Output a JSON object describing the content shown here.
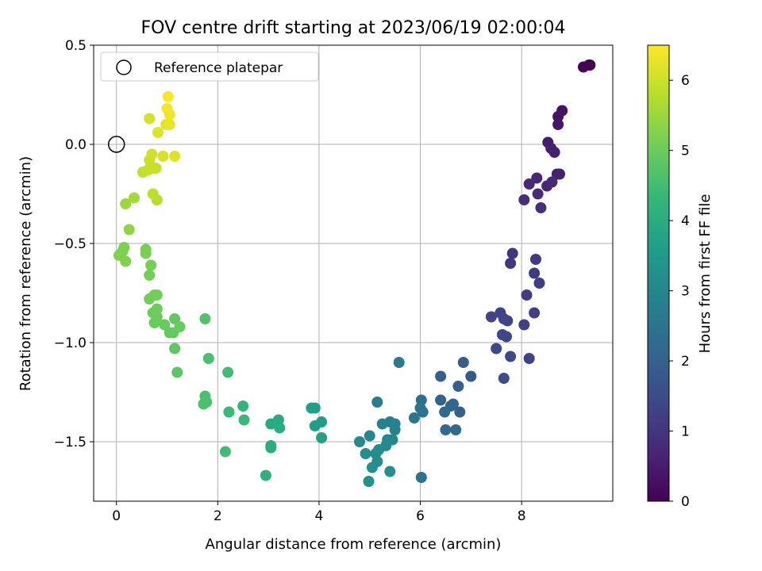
{
  "chart_data": {
    "type": "scatter",
    "title": "FOV centre drift starting at 2023/06/19 02:00:04",
    "xlabel": "Angular distance from reference (arcmin)",
    "ylabel": "Rotation from reference (arcmin)",
    "xlim": [
      -0.45,
      9.8
    ],
    "ylim": [
      -1.8,
      0.5
    ],
    "xticks": [
      0,
      2,
      4,
      6,
      8
    ],
    "xtick_labels": [
      "0",
      "2",
      "4",
      "6",
      "8"
    ],
    "yticks": [
      0.5,
      0.0,
      -0.5,
      -1.0,
      -1.5
    ],
    "ytick_labels": [
      "0.5",
      "0.0",
      "−0.5",
      "−1.0",
      "−1.5"
    ],
    "grid": true,
    "legend": {
      "position": "top-left",
      "entries": [
        "Reference platepar"
      ]
    },
    "reference_point": {
      "name": "Reference platepar",
      "x": 0,
      "y": 0
    },
    "colorbar": {
      "label": "Hours from first FF file",
      "colormap": "viridis",
      "range": [
        0,
        6.5
      ],
      "ticks": [
        0,
        1,
        2,
        3,
        4,
        5,
        6
      ],
      "tick_labels": [
        "0",
        "1",
        "2",
        "3",
        "4",
        "5",
        "6"
      ]
    },
    "colormap_stops": [
      "#440154",
      "#482878",
      "#3e4989",
      "#31688e",
      "#26828e",
      "#1f9e89",
      "#35b779",
      "#6ece58",
      "#b5de2b",
      "#fde725"
    ],
    "points": [
      [
        9.35,
        0.4,
        0.0
      ],
      [
        9.22,
        0.39,
        0.05
      ],
      [
        9.33,
        0.4,
        0.02
      ],
      [
        8.8,
        0.17,
        0.3
      ],
      [
        8.72,
        0.14,
        0.35
      ],
      [
        8.72,
        0.1,
        0.4
      ],
      [
        8.52,
        0.01,
        0.5
      ],
      [
        8.58,
        -0.02,
        0.55
      ],
      [
        8.65,
        -0.04,
        0.55
      ],
      [
        8.7,
        -0.15,
        0.6
      ],
      [
        8.75,
        -0.15,
        0.62
      ],
      [
        8.3,
        -0.17,
        0.7
      ],
      [
        8.5,
        -0.21,
        0.7
      ],
      [
        8.6,
        -0.19,
        0.72
      ],
      [
        8.15,
        -0.2,
        0.75
      ],
      [
        8.32,
        -0.25,
        0.8
      ],
      [
        8.05,
        -0.28,
        0.85
      ],
      [
        8.38,
        -0.32,
        0.85
      ],
      [
        7.82,
        -0.55,
        1.0
      ],
      [
        7.78,
        -0.6,
        1.05
      ],
      [
        8.28,
        -0.58,
        1.1
      ],
      [
        8.25,
        -0.65,
        1.12
      ],
      [
        8.35,
        -0.7,
        1.15
      ],
      [
        8.1,
        -0.76,
        1.18
      ],
      [
        7.58,
        -0.85,
        1.3
      ],
      [
        7.4,
        -0.87,
        1.32
      ],
      [
        8.25,
        -0.85,
        1.2
      ],
      [
        7.65,
        -0.88,
        1.35
      ],
      [
        8.05,
        -0.91,
        1.25
      ],
      [
        7.72,
        -0.89,
        1.35
      ],
      [
        7.62,
        -0.96,
        1.4
      ],
      [
        7.7,
        -0.97,
        1.4
      ],
      [
        7.5,
        -1.03,
        1.45
      ],
      [
        7.78,
        -1.07,
        1.45
      ],
      [
        8.15,
        -1.08,
        1.3
      ],
      [
        7.65,
        -1.18,
        1.55
      ],
      [
        6.85,
        -1.1,
        1.9
      ],
      [
        6.4,
        -1.17,
        1.95
      ],
      [
        7.0,
        -1.17,
        1.85
      ],
      [
        6.75,
        -1.22,
        1.95
      ],
      [
        6.4,
        -1.29,
        2.05
      ],
      [
        6.6,
        -1.32,
        2.1
      ],
      [
        6.65,
        -1.31,
        2.15
      ],
      [
        6.78,
        -1.35,
        2.05
      ],
      [
        6.48,
        -1.35,
        2.2
      ],
      [
        6.5,
        -1.44,
        2.25
      ],
      [
        6.7,
        -1.44,
        2.2
      ],
      [
        6.02,
        -1.29,
        2.4
      ],
      [
        6.0,
        -1.33,
        2.45
      ],
      [
        6.05,
        -1.35,
        2.5
      ],
      [
        5.88,
        -1.38,
        2.55
      ],
      [
        5.58,
        -1.1,
        2.7
      ],
      [
        5.15,
        -1.3,
        2.7
      ],
      [
        5.4,
        -1.4,
        2.8
      ],
      [
        5.25,
        -1.41,
        2.85
      ],
      [
        5.5,
        -1.41,
        2.9
      ],
      [
        5.5,
        -1.44,
        2.9
      ],
      [
        5.0,
        -1.47,
        3.0
      ],
      [
        5.45,
        -1.49,
        3.0
      ],
      [
        5.35,
        -1.49,
        3.05
      ],
      [
        4.8,
        -1.5,
        3.1
      ],
      [
        5.32,
        -1.52,
        3.1
      ],
      [
        5.18,
        -1.54,
        3.15
      ],
      [
        5.12,
        -1.56,
        3.15
      ],
      [
        4.92,
        -1.56,
        3.2
      ],
      [
        5.15,
        -1.6,
        3.2
      ],
      [
        5.05,
        -1.63,
        3.25
      ],
      [
        5.4,
        -1.65,
        3.25
      ],
      [
        4.98,
        -1.7,
        3.3
      ],
      [
        6.02,
        -1.68,
        2.45
      ],
      [
        3.92,
        -1.33,
        3.6
      ],
      [
        3.85,
        -1.33,
        3.62
      ],
      [
        4.05,
        -1.4,
        3.65
      ],
      [
        3.92,
        -1.42,
        3.65
      ],
      [
        4.05,
        -1.48,
        3.7
      ],
      [
        3.2,
        -1.39,
        3.95
      ],
      [
        3.05,
        -1.41,
        3.95
      ],
      [
        3.22,
        -1.43,
        4.0
      ],
      [
        3.05,
        -1.52,
        4.05
      ],
      [
        3.05,
        -1.53,
        4.05
      ],
      [
        2.95,
        -1.67,
        4.1
      ],
      [
        2.5,
        -1.32,
        4.3
      ],
      [
        2.52,
        -1.39,
        4.35
      ],
      [
        2.22,
        -1.35,
        4.4
      ],
      [
        2.2,
        -1.15,
        4.5
      ],
      [
        2.15,
        -1.55,
        4.45
      ],
      [
        1.82,
        -1.08,
        4.6
      ],
      [
        1.75,
        -0.88,
        4.7
      ],
      [
        1.75,
        -1.27,
        4.6
      ],
      [
        1.72,
        -1.31,
        4.62
      ],
      [
        1.78,
        -1.3,
        4.62
      ],
      [
        1.2,
        -1.15,
        4.8
      ],
      [
        1.15,
        -1.03,
        4.85
      ],
      [
        1.12,
        -0.95,
        4.9
      ],
      [
        1.15,
        -0.88,
        4.9
      ],
      [
        1.05,
        -0.95,
        4.92
      ],
      [
        1.25,
        -0.92,
        4.95
      ],
      [
        0.95,
        -0.91,
        4.95
      ],
      [
        0.75,
        -0.9,
        4.98
      ],
      [
        0.72,
        -0.85,
        5.0
      ],
      [
        0.8,
        -0.87,
        5.0
      ],
      [
        0.8,
        -0.83,
        5.02
      ],
      [
        0.65,
        -0.78,
        5.05
      ],
      [
        0.75,
        -0.76,
        5.05
      ],
      [
        0.8,
        -0.76,
        5.08
      ],
      [
        0.65,
        -0.66,
        5.1
      ],
      [
        0.68,
        -0.61,
        5.12
      ],
      [
        0.58,
        -0.53,
        5.15
      ],
      [
        0.58,
        -0.55,
        5.15
      ],
      [
        0.15,
        -0.52,
        5.2
      ],
      [
        0.12,
        -0.54,
        5.2
      ],
      [
        0.05,
        -0.56,
        5.22
      ],
      [
        0.18,
        -0.59,
        5.22
      ],
      [
        0.25,
        -0.43,
        5.4
      ],
      [
        0.18,
        -0.3,
        5.5
      ],
      [
        0.35,
        -0.27,
        5.6
      ],
      [
        0.8,
        -0.28,
        5.8
      ],
      [
        0.72,
        -0.25,
        5.85
      ],
      [
        0.52,
        -0.14,
        5.9
      ],
      [
        0.62,
        -0.13,
        5.92
      ],
      [
        0.78,
        -0.12,
        5.95
      ],
      [
        0.72,
        -0.12,
        5.95
      ],
      [
        0.65,
        -0.08,
        6.0
      ],
      [
        0.7,
        -0.05,
        6.05
      ],
      [
        0.92,
        -0.06,
        6.1
      ],
      [
        1.15,
        -0.06,
        6.2
      ],
      [
        0.65,
        0.13,
        6.1
      ],
      [
        0.82,
        0.06,
        6.2
      ],
      [
        0.98,
        0.1,
        6.25
      ],
      [
        1.05,
        0.1,
        6.3
      ],
      [
        1.05,
        0.15,
        6.35
      ],
      [
        1.0,
        0.18,
        6.4
      ],
      [
        1.02,
        0.24,
        6.45
      ]
    ]
  }
}
